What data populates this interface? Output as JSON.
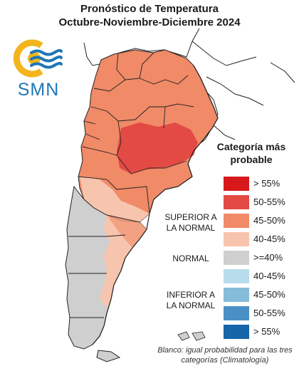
{
  "title": {
    "line1": "Pronóstico de Temperatura",
    "line2": "Octubre-Noviembre-Diciembre 2024"
  },
  "logo": {
    "text": "SMN",
    "colors": {
      "sun": "#f2b51c",
      "waves": "#1f77b6"
    }
  },
  "legend": {
    "title": "Categoría más probable",
    "groups": {
      "above": "SUPERIOR A LA NORMAL",
      "normal": "NORMAL",
      "below": "INFERIOR A LA NORMAL"
    },
    "items": [
      {
        "label": "> 55%",
        "color": "#d7191c"
      },
      {
        "label": "50-55%",
        "color": "#e34a44"
      },
      {
        "label": "45-50%",
        "color": "#f08a67"
      },
      {
        "label": "40-45%",
        "color": "#f7c4ad"
      },
      {
        "label": ">=40%",
        "color": "#cfcfcf"
      },
      {
        "label": "40-45%",
        "color": "#b9dcec"
      },
      {
        "label": "45-50%",
        "color": "#86bcda"
      },
      {
        "label": "50-55%",
        "color": "#4a90c6"
      },
      {
        "label": "> 55%",
        "color": "#1565a8"
      }
    ]
  },
  "note": "Blanco: igual probabilidad para las tres categorías (Climatología)"
}
